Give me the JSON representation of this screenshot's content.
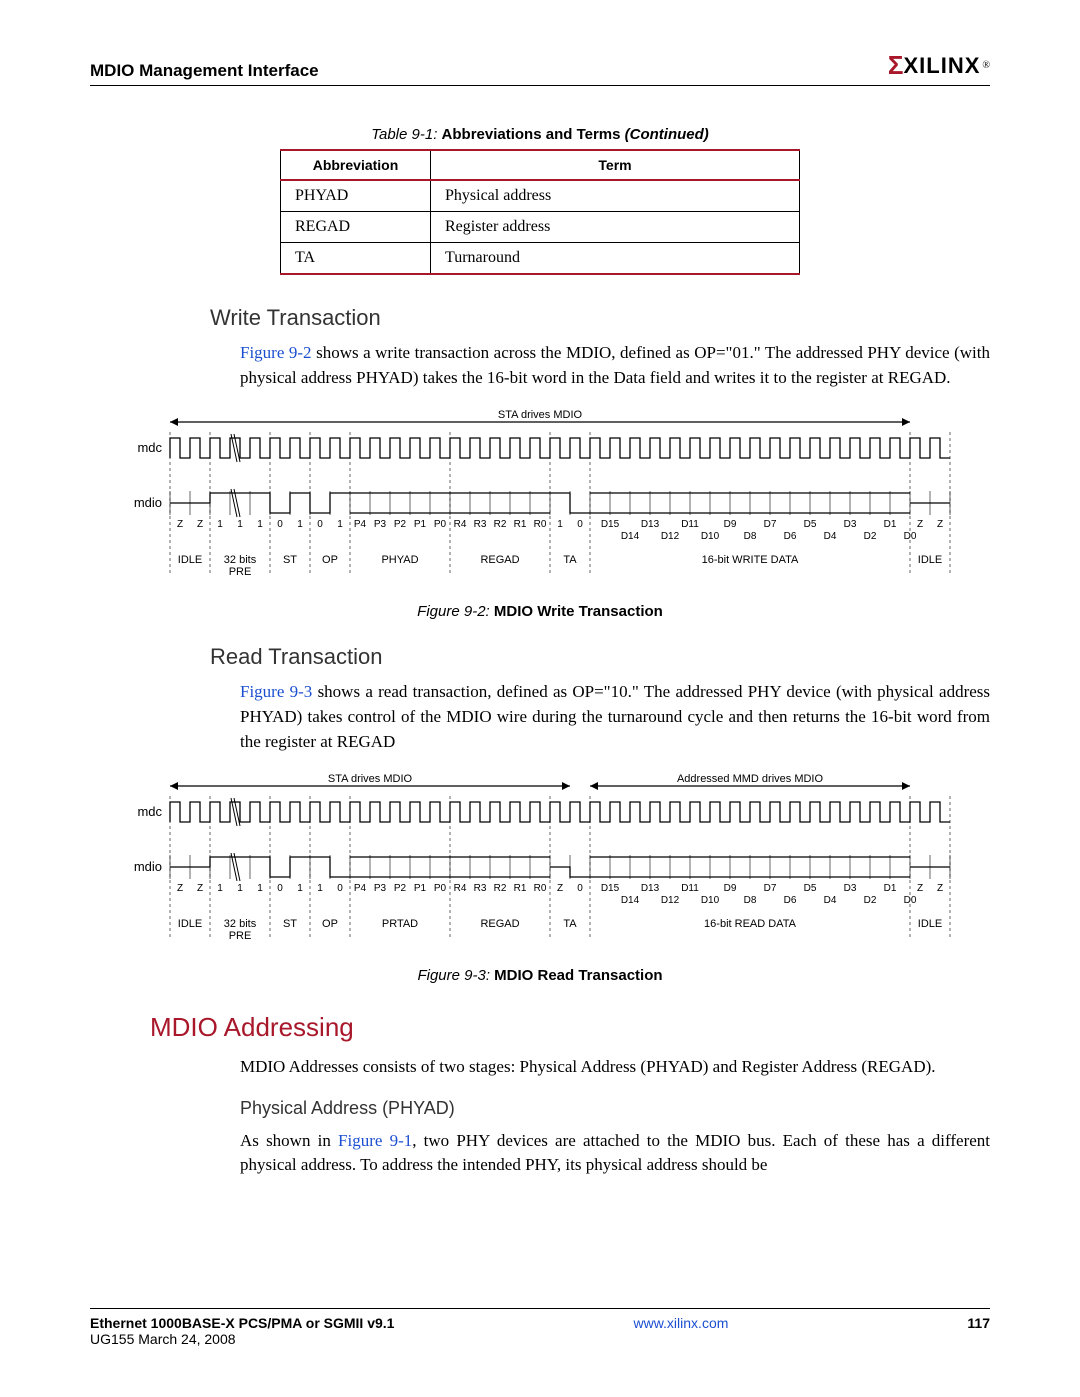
{
  "header": {
    "title": "MDIO Management Interface",
    "logo_text": "XILINX",
    "logo_reg": "®"
  },
  "table": {
    "caption_prefix": "Table 9-1:",
    "caption_title": "Abbreviations and Terms",
    "caption_suffix": "(Continued)",
    "columns": [
      "Abbreviation",
      "Term"
    ],
    "rows": [
      [
        "PHYAD",
        "Physical address"
      ],
      [
        "REGAD",
        "Register address"
      ],
      [
        "TA",
        "Turnaround"
      ]
    ]
  },
  "write_section": {
    "heading": "Write Transaction",
    "link_text": "Figure 9-2",
    "body_after": " shows a write transaction across the MDIO, defined as OP=\"01.\" The addressed PHY device (with physical address PHYAD) takes the 16-bit word in the Data field and writes it to the register at REGAD."
  },
  "write_diagram": {
    "top_label": "STA drives MDIO",
    "signals": [
      "mdc",
      "mdio"
    ],
    "z_left": [
      "Z",
      "Z"
    ],
    "pre_bits": [
      "1",
      "1",
      "1"
    ],
    "st_bits": [
      "0",
      "1"
    ],
    "op_bits": [
      "0",
      "1"
    ],
    "phyad_bits": [
      "P4",
      "P3",
      "P2",
      "P1",
      "P0"
    ],
    "regad_bits": [
      "R4",
      "R3",
      "R2",
      "R1",
      "R0"
    ],
    "ta_bits": [
      "1",
      "0"
    ],
    "data_line1": [
      "D15",
      "D13",
      "D11",
      "D9",
      "D7",
      "D5",
      "D3",
      "D1"
    ],
    "data_line2": [
      "D14",
      "D12",
      "D10",
      "D8",
      "D6",
      "D4",
      "D2",
      "D0"
    ],
    "z_right": [
      "Z",
      "Z"
    ],
    "field_labels": [
      "IDLE",
      "32 bits PRE",
      "ST",
      "OP",
      "PHYAD",
      "REGAD",
      "TA",
      "16-bit WRITE DATA",
      "IDLE"
    ],
    "caption_prefix": "Figure 9-2:",
    "caption_title": "MDIO Write Transaction"
  },
  "read_section": {
    "heading": "Read Transaction",
    "link_text": "Figure 9-3",
    "body_after": " shows a read transaction, defined as OP=\"10.\" The addressed PHY device (with physical address PHYAD) takes control of the MDIO wire during the turnaround cycle and then returns the 16-bit word from the register at REGAD"
  },
  "read_diagram": {
    "top_label_left": "STA drives MDIO",
    "top_label_right": "Addressed MMD drives MDIO",
    "signals": [
      "mdc",
      "mdio"
    ],
    "z_left": [
      "Z",
      "Z"
    ],
    "pre_bits": [
      "1",
      "1",
      "1"
    ],
    "st_bits": [
      "0",
      "1"
    ],
    "op_bits": [
      "1",
      "0"
    ],
    "phyad_bits": [
      "P4",
      "P3",
      "P2",
      "P1",
      "P0"
    ],
    "regad_bits": [
      "R4",
      "R3",
      "R2",
      "R1",
      "R0"
    ],
    "ta_bits": [
      "Z",
      "0"
    ],
    "data_line1": [
      "D15",
      "D13",
      "D11",
      "D9",
      "D7",
      "D5",
      "D3",
      "D1"
    ],
    "data_line2": [
      "D14",
      "D12",
      "D10",
      "D8",
      "D6",
      "D4",
      "D2",
      "D0"
    ],
    "z_right": [
      "Z",
      "Z"
    ],
    "phyad_field": "PRTAD",
    "field_labels": [
      "IDLE",
      "32 bits PRE",
      "ST",
      "OP",
      "PRTAD",
      "REGAD",
      "TA",
      "16-bit READ DATA",
      "IDLE"
    ],
    "caption_prefix": "Figure 9-3:",
    "caption_title": "MDIO Read Transaction"
  },
  "addressing": {
    "heading": "MDIO Addressing",
    "body": "MDIO Addresses consists of two stages: Physical Address (PHYAD) and Register Address (REGAD).",
    "sub_heading": "Physical Address (PHYAD)",
    "sub_link": "Figure 9-1",
    "sub_before": "As shown in ",
    "sub_after": ", two PHY devices are attached to the MDIO bus. Each of these has a different physical address. To address the intended PHY, its physical address should be"
  },
  "footer": {
    "doc_title": "Ethernet 1000BASE-X PCS/PMA or SGMII v9.1",
    "doc_sub": "UG155 March 24, 2008",
    "url": "www.xilinx.com",
    "page": "117"
  },
  "diagram_style": {
    "clock_color": "#000000",
    "line_width": 1.3,
    "font_size_labels": 11,
    "font_size_signals": 13,
    "bg": "#ffffff"
  }
}
